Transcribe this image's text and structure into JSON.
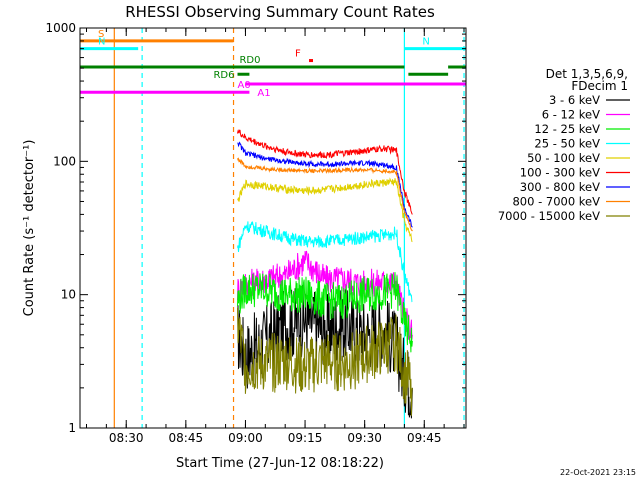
{
  "chart_data": {
    "type": "line",
    "title": "RHESSI Observing Summary Count Rates",
    "xlabel": "Start Time (27-Jun-12 08:18:22)",
    "ylabel": "Count Rate (s⁻¹ detector⁻¹)",
    "y_scale": "log",
    "ylim": [
      1,
      1000
    ],
    "xlim": [
      "08:18:22",
      "09:55:30"
    ],
    "x_ticks": [
      "08:30",
      "08:45",
      "09:00",
      "09:15",
      "09:30",
      "09:45"
    ],
    "y_ticks": [
      "1",
      "10",
      "100",
      "1000"
    ],
    "grid": false,
    "legend_position": "right",
    "legend_header": [
      "Det 1,3,5,6,9,",
      "FDecim 1"
    ],
    "series": [
      {
        "name": "3 - 6 keV",
        "color": "#000000",
        "x": [
          "08:58:00",
          "09:00",
          "09:05",
          "09:10",
          "09:15",
          "09:20",
          "09:25",
          "09:30",
          "09:35",
          "09:38",
          "09:40",
          "09:42"
        ],
        "values": [
          5,
          3.5,
          4.5,
          6,
          6.5,
          5.5,
          6,
          5,
          5.5,
          4,
          2.5,
          2
        ]
      },
      {
        "name": "6 - 12 keV",
        "color": "#ff00ff",
        "x": [
          "08:58:00",
          "09:00",
          "09:05",
          "09:10",
          "09:15",
          "09:20",
          "09:25",
          "09:30",
          "09:35",
          "09:38",
          "09:40",
          "09:42"
        ],
        "values": [
          11,
          12,
          13,
          14,
          18,
          13,
          13,
          12,
          12.5,
          12,
          7,
          5
        ]
      },
      {
        "name": "12 - 25 keV",
        "color": "#00ee00",
        "x": [
          "08:58:00",
          "09:00",
          "09:05",
          "09:10",
          "09:15",
          "09:20",
          "09:25",
          "09:30",
          "09:35",
          "09:38",
          "09:40",
          "09:42"
        ],
        "values": [
          9,
          11,
          11,
          10,
          10,
          9,
          9,
          10,
          10.5,
          11,
          6,
          4.5
        ]
      },
      {
        "name": "25 - 50 keV",
        "color": "#00ffff",
        "x": [
          "08:58:00",
          "09:00",
          "09:05",
          "09:10",
          "09:15",
          "09:20",
          "09:25",
          "09:30",
          "09:35",
          "09:38",
          "09:40",
          "09:42"
        ],
        "values": [
          22,
          33,
          30,
          27,
          25,
          25,
          26,
          27,
          28,
          29,
          14,
          9
        ]
      },
      {
        "name": "50 - 100 keV",
        "color": "#e0d000",
        "x": [
          "08:58:00",
          "09:00",
          "09:05",
          "09:10",
          "09:15",
          "09:20",
          "09:25",
          "09:30",
          "09:35",
          "09:38",
          "09:40",
          "09:42"
        ],
        "values": [
          50,
          68,
          65,
          62,
          60,
          61,
          64,
          67,
          69,
          70,
          35,
          25
        ]
      },
      {
        "name": "100 - 300 keV",
        "color": "#ff0000",
        "x": [
          "08:58:00",
          "09:00",
          "09:05",
          "09:10",
          "09:15",
          "09:20",
          "09:25",
          "09:30",
          "09:35",
          "09:38",
          "09:40",
          "09:42"
        ],
        "values": [
          170,
          150,
          130,
          118,
          112,
          112,
          115,
          120,
          125,
          120,
          60,
          40
        ]
      },
      {
        "name": "300 - 800 keV",
        "color": "#0000ff",
        "x": [
          "08:58:00",
          "09:00",
          "09:05",
          "09:10",
          "09:15",
          "09:20",
          "09:25",
          "09:30",
          "09:35",
          "09:38",
          "09:40",
          "09:42"
        ],
        "values": [
          140,
          115,
          105,
          100,
          96,
          95,
          96,
          97,
          94,
          90,
          45,
          32
        ]
      },
      {
        "name": "800 - 7000 keV",
        "color": "#ff8000",
        "x": [
          "08:58:00",
          "09:00",
          "09:05",
          "09:10",
          "09:15",
          "09:20",
          "09:25",
          "09:30",
          "09:35",
          "09:38",
          "09:40",
          "09:42"
        ],
        "values": [
          105,
          92,
          88,
          86,
          85,
          85,
          86,
          86,
          85,
          83,
          42,
          30
        ]
      },
      {
        "name": "7000 - 15000 keV",
        "color": "#808000",
        "x": [
          "08:58:00",
          "09:00",
          "09:05",
          "09:10",
          "09:15",
          "09:20",
          "09:25",
          "09:30",
          "09:35",
          "09:38",
          "09:40",
          "09:42"
        ],
        "values": [
          6,
          3,
          3,
          3.2,
          2.8,
          3.2,
          3,
          3.5,
          4,
          4.5,
          2.5,
          2
        ]
      }
    ],
    "state_bars": [
      {
        "label": "S",
        "color": "#ff8000",
        "start": "08:18:22",
        "end": "08:57:00",
        "level": 800
      },
      {
        "label": "N",
        "color": "#00ffff",
        "start": "08:18:22",
        "end": "08:33:00",
        "level": 700
      },
      {
        "label": "N",
        "color": "#00ffff",
        "start": "09:40:00",
        "end": "09:55:30",
        "level": 700
      },
      {
        "label": "F",
        "color": "#ff0000",
        "start": "09:16:00",
        "end": "09:17:00",
        "level": 570
      },
      {
        "label": "RD0",
        "color": "#008000",
        "start": "08:18:22",
        "end": "09:40:00",
        "level": 510
      },
      {
        "label": "",
        "color": "#008000",
        "start": "09:51:00",
        "end": "09:55:30",
        "level": 510
      },
      {
        "label": "RD6",
        "color": "#008000",
        "start": "08:58:00",
        "end": "09:01:00",
        "level": 450
      },
      {
        "label": "",
        "color": "#008000",
        "start": "09:41:00",
        "end": "09:51:00",
        "level": 450
      },
      {
        "label": "A0",
        "color": "#ff00ff",
        "start": "09:00:00",
        "end": "09:55:30",
        "level": 380
      },
      {
        "label": "A1",
        "color": "#ff00ff",
        "start": "08:18:22",
        "end": "09:01:00",
        "level": 330
      }
    ],
    "vertical_markers": [
      {
        "time": "08:27:00",
        "color": "#ff8000",
        "style": "solid"
      },
      {
        "time": "08:34:00",
        "color": "#00ffff",
        "style": "dashed"
      },
      {
        "time": "08:57:00",
        "color": "#ff8000",
        "style": "dashed"
      },
      {
        "time": "09:40:00",
        "color": "#00ffff",
        "style": "solid"
      },
      {
        "time": "09:55:00",
        "color": "#00ffff",
        "style": "dashed"
      }
    ],
    "footer_timestamp": "22-Oct-2021 23:15"
  }
}
